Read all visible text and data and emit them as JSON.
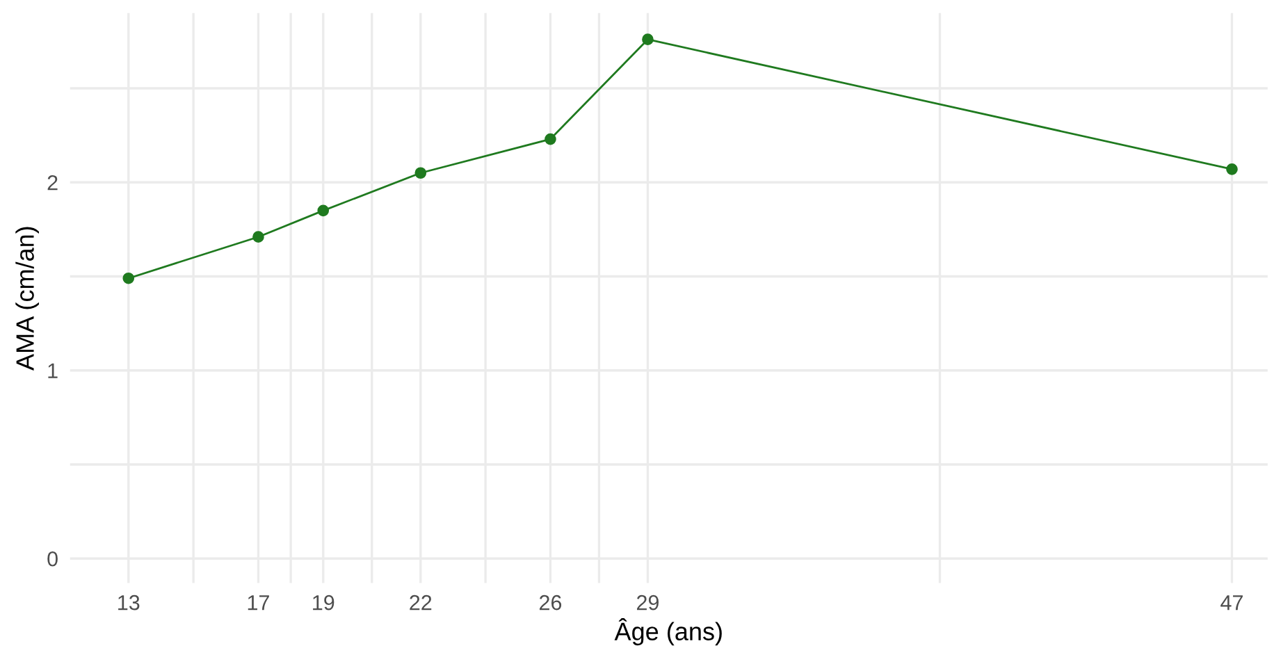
{
  "chart_data": {
    "type": "line",
    "xlabel": "Âge (ans)",
    "ylabel": "AMA (cm/an)",
    "x": [
      13,
      17,
      19,
      22,
      26,
      29,
      47
    ],
    "series": [
      {
        "color": "#1f7a1f",
        "values": [
          1.49,
          1.71,
          1.85,
          2.05,
          2.23,
          2.76,
          2.07
        ]
      }
    ],
    "xlim": [
      11.2,
      48.1
    ],
    "xticks": [
      13,
      {
        "value": 15,
        "label": null
      },
      17,
      {
        "value": 18,
        "label": null
      },
      19,
      {
        "value": 20.5,
        "label": null
      },
      22,
      {
        "value": 24,
        "label": null
      },
      26,
      {
        "value": 27.5,
        "label": null
      },
      29,
      {
        "value": 38,
        "label": null
      },
      47
    ],
    "ylim": [
      -0.13,
      2.9
    ],
    "yticks": [
      0,
      {
        "value": 0.5,
        "label": null
      },
      1,
      {
        "value": 1.5,
        "label": null
      },
      2,
      {
        "value": 2.5,
        "label": null
      }
    ],
    "grid": true,
    "marker": "circle",
    "line_style": "solid"
  }
}
